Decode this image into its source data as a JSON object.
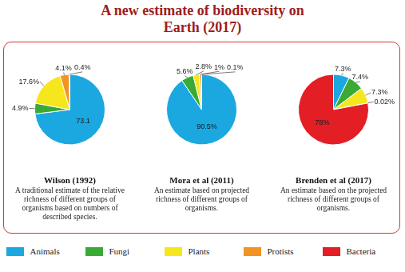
{
  "title": "A new estimate of biodiversity on Earth (2017)",
  "legend": "bottom",
  "chart_data": [
    {
      "type": "pie",
      "title": "Wilson (1992)",
      "subtitle": "A traditional estimate of the relative richness of different groups of organisms based on numbers of described species.",
      "categories": [
        "Animals",
        "Fungi",
        "Plants",
        "Protists",
        "Bacteria"
      ],
      "values": [
        73.1,
        4.9,
        17.6,
        4.1,
        0.4
      ],
      "value_labels": [
        "73.1",
        "4.9%",
        "17.6%",
        "4.1%",
        "0.4%"
      ],
      "colors": [
        "#1ba8e0",
        "#3aaa35",
        "#f5e71c",
        "#f39323",
        "#e31e24"
      ],
      "data_labels": true
    },
    {
      "type": "pie",
      "title": "Mora et al (2011)",
      "subtitle": "An estimate based on projected richness of different groups of organisms.",
      "categories": [
        "Animals",
        "Fungi",
        "Plants",
        "Protists",
        "Bacteria"
      ],
      "values": [
        90.5,
        5.6,
        2.8,
        1,
        0.1
      ],
      "value_labels": [
        "90.5%",
        "5.6%",
        "2.8%",
        "1%",
        "0.1%"
      ],
      "colors": [
        "#1ba8e0",
        "#3aaa35",
        "#f5e71c",
        "#f39323",
        "#e31e24"
      ],
      "data_labels": true
    },
    {
      "type": "pie",
      "title": "Brenden et al (2017)",
      "subtitle": "An estimate based on the projected richness of different groups of organisms.",
      "categories": [
        "Animals",
        "Fungi",
        "Plants",
        "Protists",
        "Bacteria"
      ],
      "values": [
        7.3,
        7.4,
        7.3,
        0.02,
        78
      ],
      "value_labels": [
        "7.3%",
        "7.4%",
        "7.3%",
        "0.02%",
        "78%"
      ],
      "colors": [
        "#1ba8e0",
        "#3aaa35",
        "#f5e71c",
        "#f39323",
        "#e31e24"
      ],
      "data_labels": true
    }
  ]
}
